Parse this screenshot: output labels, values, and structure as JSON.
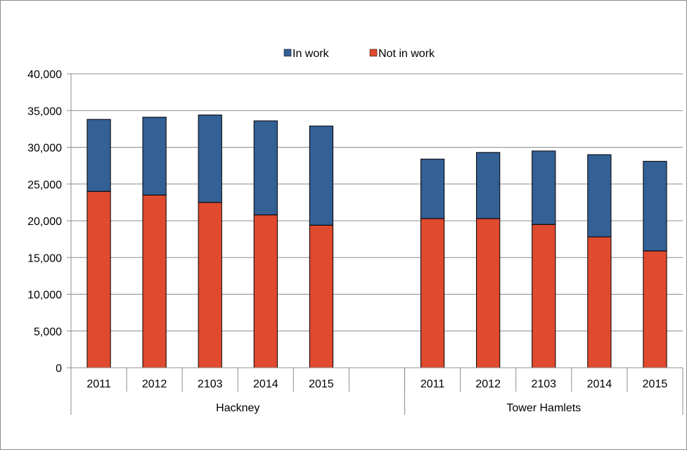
{
  "chart_data": {
    "type": "bar",
    "stacked": true,
    "groups": [
      {
        "name": "Hackney",
        "categories": [
          "2011",
          "2012",
          "2103",
          "2014",
          "2015"
        ]
      },
      {
        "name": "Tower Hamlets",
        "categories": [
          "2011",
          "2012",
          "2103",
          "2014",
          "2015"
        ]
      }
    ],
    "series": [
      {
        "name": "Not in work",
        "color": "#e04a2e",
        "values": [
          [
            24000,
            23500,
            22500,
            20800,
            19400
          ],
          [
            20300,
            20300,
            19500,
            17800,
            15900
          ]
        ]
      },
      {
        "name": "In work",
        "color": "#336095",
        "values": [
          [
            9800,
            10600,
            11900,
            12800,
            13500
          ],
          [
            8100,
            9000,
            10000,
            11200,
            12200
          ]
        ]
      }
    ],
    "legend": {
      "position": "top",
      "order": [
        "In work",
        "Not in work"
      ]
    },
    "ylim": [
      0,
      40000
    ],
    "yticks": [
      0,
      5000,
      10000,
      15000,
      20000,
      25000,
      30000,
      35000,
      40000
    ],
    "ytick_labels": [
      "0",
      "5,000",
      "10,000",
      "15,000",
      "20,000",
      "25,000",
      "30,000",
      "35,000",
      "40,000"
    ],
    "grid": true
  }
}
